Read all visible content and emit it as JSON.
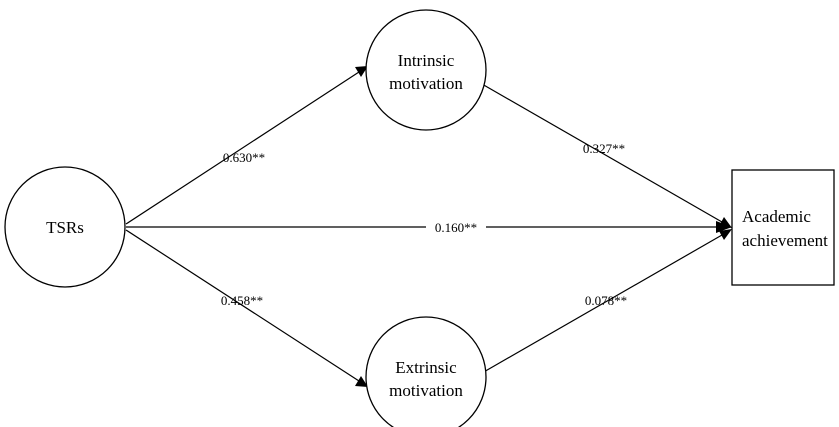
{
  "nodes": {
    "tsrs": {
      "label": "TSRs"
    },
    "intrinsic": {
      "line1": "Intrinsic",
      "line2": "motivation"
    },
    "extrinsic": {
      "line1": "Extrinsic",
      "line2": "motivation"
    },
    "academic": {
      "line1": "Academic",
      "line2": "achievement"
    }
  },
  "paths": {
    "tsrs_to_intrinsic": "0.630**",
    "intrinsic_to_academic": "0.327**",
    "tsrs_to_academic": "0.160**",
    "tsrs_to_extrinsic": "0.458**",
    "extrinsic_to_academic": "0.078**"
  }
}
